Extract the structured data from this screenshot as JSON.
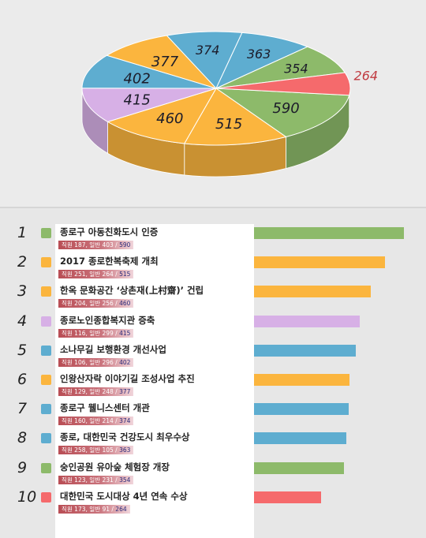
{
  "chart_data": {
    "type": "pie",
    "slices": [
      {
        "value": 590,
        "color": "#8dba6a"
      },
      {
        "value": 515,
        "color": "#fbb53e"
      },
      {
        "value": 460,
        "color": "#fbb53e"
      },
      {
        "value": 415,
        "color": "#d7b0e6"
      },
      {
        "value": 402,
        "color": "#5eadd0"
      },
      {
        "value": 377,
        "color": "#fbb53e"
      },
      {
        "value": 374,
        "color": "#5eadd0"
      },
      {
        "value": 363,
        "color": "#5eadd0"
      },
      {
        "value": 354,
        "color": "#8dba6a"
      },
      {
        "value": 264,
        "color": "#f56a6c"
      }
    ]
  },
  "ranking": [
    {
      "rank": "1",
      "title": "종로구 아동친화도시 인증",
      "detail": "직원 187, 일반 403 /",
      "total": "590",
      "value": 590,
      "color": "#8dba6a"
    },
    {
      "rank": "2",
      "title": "2017 종로한복축제  개최",
      "detail": "직원 251, 일반 264 /",
      "total": "515",
      "value": 515,
      "color": "#fbb53e"
    },
    {
      "rank": "3",
      "title": "한옥 문화공간  ‘상촌재(上村齋)’  건립",
      "detail": "직원 204, 일반 256 /",
      "total": "460",
      "value": 460,
      "color": "#fbb53e"
    },
    {
      "rank": "4",
      "title": "종로노인종합복지관 증축",
      "detail": "직원 116, 일반 299 /",
      "total": "415",
      "value": 415,
      "color": "#d7b0e6"
    },
    {
      "rank": "5",
      "title": "소나무길 보행환경 개선사업",
      "detail": "직원 106, 일반 296 /",
      "total": "402",
      "value": 402,
      "color": "#5eadd0"
    },
    {
      "rank": "6",
      "title": "인왕산자락 이야기길 조성사업 추진",
      "detail": "직원 129, 일반 248 /",
      "total": "377",
      "value": 377,
      "color": "#fbb53e"
    },
    {
      "rank": "7",
      "title": "종로구 웰니스센터 개관",
      "detail": "직원 160, 일반 214 /",
      "total": "374",
      "value": 374,
      "color": "#5eadd0"
    },
    {
      "rank": "8",
      "title": "종로, 대한민국 건강도시 최우수상",
      "detail": "직원 258, 일반 105 /",
      "total": "363",
      "value": 363,
      "color": "#5eadd0"
    },
    {
      "rank": "9",
      "title": "숭인공원 유아숲 체험장 개장",
      "detail": "직원 123, 일반 231 /",
      "total": "354",
      "value": 354,
      "color": "#8dba6a"
    },
    {
      "rank": "10",
      "title": "대한민국 도시대상 4년 연속 수상",
      "detail": "직원 173, 일반 91 /",
      "total": "264",
      "value": 264,
      "color": "#f56a6c"
    }
  ]
}
